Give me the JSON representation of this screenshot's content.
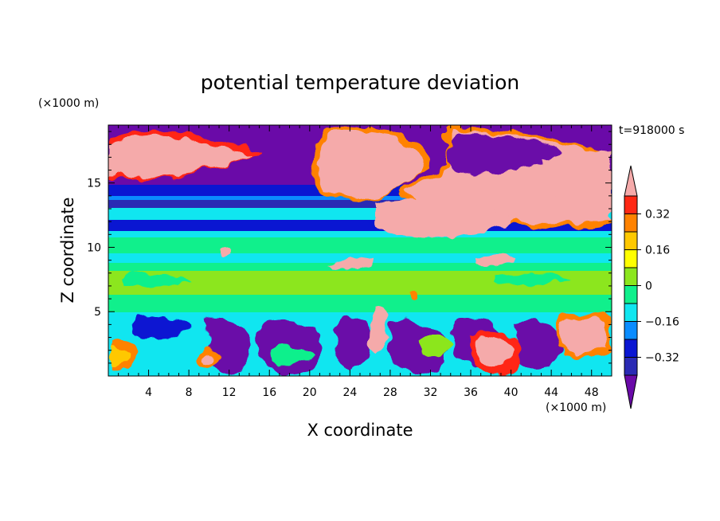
{
  "chart_data": {
    "type": "heatmap",
    "title": "potential temperature deviation",
    "time_label": "t=918000 s",
    "xlabel": "X coordinate",
    "ylabel": "Z coordinate",
    "x_unit": "(×1000 m)",
    "y_unit": "(×1000 m)",
    "xlim": [
      0,
      50
    ],
    "ylim": [
      0,
      19.5
    ],
    "x_ticks": [
      4,
      8,
      12,
      16,
      20,
      24,
      28,
      32,
      36,
      40,
      44,
      48
    ],
    "y_ticks": [
      5,
      10,
      15
    ],
    "colorbar": {
      "labels": [
        0.32,
        0.16,
        0,
        -0.16,
        -0.32
      ],
      "extend": "both",
      "levels": [
        {
          "range": "< -0.40",
          "color": "#6a0aa8"
        },
        {
          "range": "-0.40 to -0.32",
          "color": "#2a2ab4"
        },
        {
          "range": "-0.32 to -0.24",
          "color": "#0a16d2"
        },
        {
          "range": "-0.24 to -0.16",
          "color": "#0a8cff"
        },
        {
          "range": "-0.16 to -0.08",
          "color": "#10e6f0"
        },
        {
          "range": "-0.08 to 0",
          "color": "#10f08c"
        },
        {
          "range": "0 to 0.08",
          "color": "#8ce61e"
        },
        {
          "range": "0.08 to 0.16",
          "color": "#ffff00"
        },
        {
          "range": "0.16 to 0.24",
          "color": "#ffc800"
        },
        {
          "range": "0.24 to 0.32",
          "color": "#ff8200"
        },
        {
          "range": "0.32 to 0.40",
          "color": "#ff2814"
        },
        {
          "range": "> 0.40",
          "color": "#f5aaaa"
        }
      ]
    }
  }
}
